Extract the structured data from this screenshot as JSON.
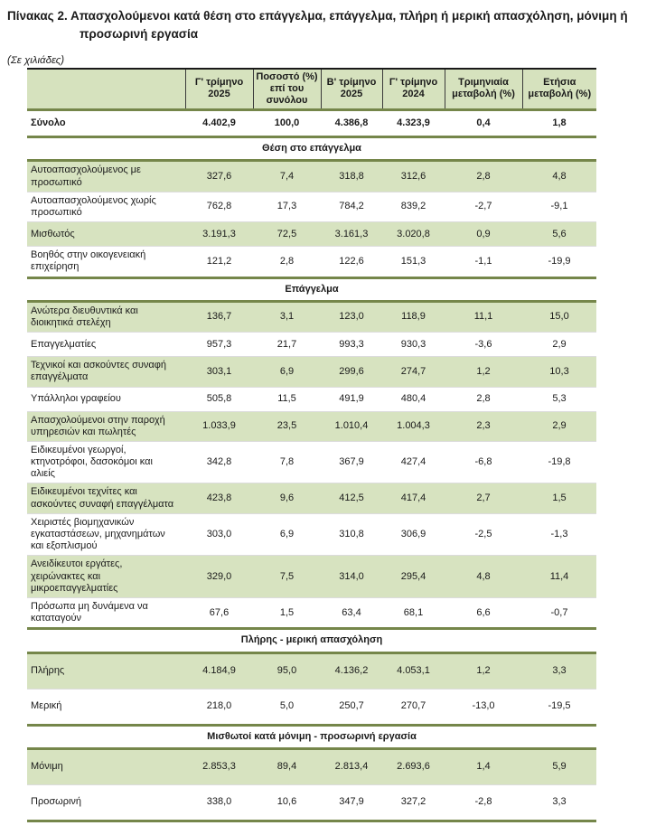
{
  "title": {
    "line1": "Πίνακας 2. Απασχολούμενοι κατά θέση στο επάγγελμα, επάγγελμα, πλήρη ή μερική απασχόληση, μόνιμη ή",
    "line2": "προσωρινή εργασία"
  },
  "unit_note": "(Σε χιλιάδες)",
  "colors": {
    "header_green": "#d6e2be",
    "row_green": "#d7e3c0",
    "rule_olive": "#75864a",
    "rule_black": "#1a1a1a"
  },
  "table": {
    "columns": [
      "Γ' τρίμηνο 2025",
      "Ποσοστό (%) επί του συνόλου",
      "Β' τρίμηνο 2025",
      "Γ' τρίμηνο 2024",
      "Τριμηνιαία μεταβολή (%)",
      "Ετήσια μεταβολή (%)"
    ],
    "total_row": {
      "label": "Σύνολο",
      "values": [
        "4.402,9",
        "100,0",
        "4.386,8",
        "4.323,9",
        "0,4",
        "1,8"
      ]
    },
    "sections": [
      {
        "title": "Θέση στο επάγγελμα",
        "rows": [
          {
            "label": "Αυτοαπασχολούμενος με προσωπικό",
            "values": [
              "327,6",
              "7,4",
              "318,8",
              "312,6",
              "2,8",
              "4,8"
            ]
          },
          {
            "label": "Αυτοαπασχολούμενος χωρίς προσωπικό",
            "values": [
              "762,8",
              "17,3",
              "784,2",
              "839,2",
              "-2,7",
              "-9,1"
            ]
          },
          {
            "label": "Μισθωτός",
            "values": [
              "3.191,3",
              "72,5",
              "3.161,3",
              "3.020,8",
              "0,9",
              "5,6"
            ]
          },
          {
            "label": "Βοηθός στην οικογενειακή επιχείρηση",
            "values": [
              "121,2",
              "2,8",
              "122,6",
              "151,3",
              "-1,1",
              "-19,9"
            ]
          }
        ]
      },
      {
        "title": "Επάγγελμα",
        "rows": [
          {
            "label": "Ανώτερα διευθυντικά και διοικητικά στελέχη",
            "values": [
              "136,7",
              "3,1",
              "123,0",
              "118,9",
              "11,1",
              "15,0"
            ]
          },
          {
            "label": "Επαγγελματίες",
            "values": [
              "957,3",
              "21,7",
              "993,3",
              "930,3",
              "-3,6",
              "2,9"
            ]
          },
          {
            "label": "Τεχνικοί και ασκούντες συναφή επαγγέλματα",
            "values": [
              "303,1",
              "6,9",
              "299,6",
              "274,7",
              "1,2",
              "10,3"
            ]
          },
          {
            "label": "Υπάλληλοι γραφείου",
            "values": [
              "505,8",
              "11,5",
              "491,9",
              "480,4",
              "2,8",
              "5,3"
            ]
          },
          {
            "label": "Απασχολούμενοι στην παροχή υπηρεσιών και πωλητές",
            "values": [
              "1.033,9",
              "23,5",
              "1.010,4",
              "1.004,3",
              "2,3",
              "2,9"
            ]
          },
          {
            "label": "Ειδικευμένοι γεωργοί, κτηνοτρόφοι, δασοκόμοι και αλιείς",
            "values": [
              "342,8",
              "7,8",
              "367,9",
              "427,4",
              "-6,8",
              "-19,8"
            ]
          },
          {
            "label": "Ειδικευμένοι τεχνίτες και ασκούντες συναφή επαγγέλματα",
            "values": [
              "423,8",
              "9,6",
              "412,5",
              "417,4",
              "2,7",
              "1,5"
            ]
          },
          {
            "label": "Χειριστές βιομηχανικών εγκαταστάσεων, μηχανημάτων και εξοπλισμού",
            "values": [
              "303,0",
              "6,9",
              "310,8",
              "306,9",
              "-2,5",
              "-1,3"
            ]
          },
          {
            "label": "Ανειδίκευτοι εργάτες, χειρώνακτες και μικροεπαγγελματίες",
            "values": [
              "329,0",
              "7,5",
              "314,0",
              "295,4",
              "4,8",
              "11,4"
            ]
          },
          {
            "label": "Πρόσωπα μη δυνάμενα να καταταγούν",
            "values": [
              "67,6",
              "1,5",
              "63,4",
              "68,1",
              "6,6",
              "-0,7"
            ]
          }
        ]
      },
      {
        "title": "Πλήρης - μερική απασχόληση",
        "rows": [
          {
            "label": "Πλήρης",
            "values": [
              "4.184,9",
              "95,0",
              "4.136,2",
              "4.053,1",
              "1,2",
              "3,3"
            ]
          },
          {
            "label": "Μερική",
            "values": [
              "218,0",
              "5,0",
              "250,7",
              "270,7",
              "-13,0",
              "-19,5"
            ]
          }
        ]
      },
      {
        "title": "Μισθωτοί κατά μόνιμη - προσωρινή εργασία",
        "rows": [
          {
            "label": "Μόνιμη",
            "values": [
              "2.853,3",
              "89,4",
              "2.813,4",
              "2.693,6",
              "1,4",
              "5,9"
            ]
          },
          {
            "label": "Προσωρινή",
            "values": [
              "338,0",
              "10,6",
              "347,9",
              "327,2",
              "-2,8",
              "3,3"
            ]
          }
        ]
      }
    ]
  }
}
